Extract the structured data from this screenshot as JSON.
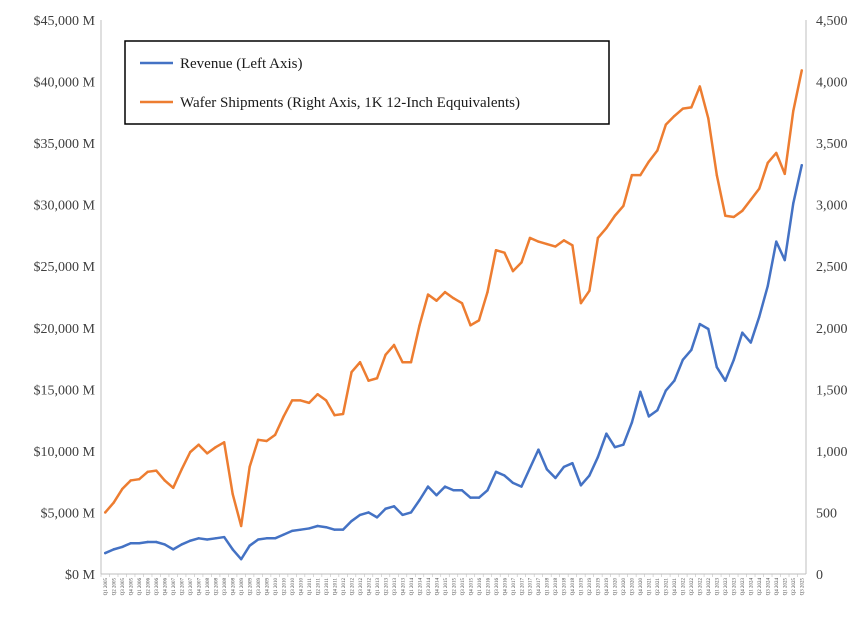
{
  "chart_data": {
    "type": "line",
    "title": "",
    "xlabel": "",
    "ylabel": "",
    "grid": false,
    "legend_position": "top-left",
    "y_left": {
      "lim": [
        0,
        45000
      ],
      "ticks": [
        0,
        5000,
        10000,
        15000,
        20000,
        25000,
        30000,
        35000,
        40000,
        45000
      ],
      "tick_labels": [
        "$0 M",
        "$5,000 M",
        "$10,000 M",
        "$15,000 M",
        "$20,000 M",
        "$25,000 M",
        "$30,000 M",
        "$35,000 M",
        "$40,000 M",
        "$45,000 M"
      ]
    },
    "y_right": {
      "lim": [
        0,
        4500
      ],
      "ticks": [
        0,
        500,
        1000,
        1500,
        2000,
        2500,
        3000,
        3500,
        4000,
        4500
      ],
      "tick_labels": [
        "0",
        "500",
        "1,000",
        "1,500",
        "2,000",
        "2,500",
        "3,000",
        "3,500",
        "4,000",
        "4,500"
      ]
    },
    "categories": [
      "Q1 2005",
      "Q2 2005",
      "Q3 2005",
      "Q4 2005",
      "Q1 2006",
      "Q2 2006",
      "Q3 2006",
      "Q4 2006",
      "Q1 2007",
      "Q2 2007",
      "Q3 2007",
      "Q4 2007",
      "Q1 2008",
      "Q2 2008",
      "Q3 2008",
      "Q4 2008",
      "Q1 2009",
      "Q2 2009",
      "Q3 2009",
      "Q4 2009",
      "Q1 2010",
      "Q2 2010",
      "Q3 2010",
      "Q4 2010",
      "Q1 2011",
      "Q2 2011",
      "Q3 2011",
      "Q4 2011",
      "Q1 2012",
      "Q2 2012",
      "Q3 2012",
      "Q4 2012",
      "Q1 2013",
      "Q2 2013",
      "Q3 2013",
      "Q4 2013",
      "Q1 2014",
      "Q2 2014",
      "Q3 2014",
      "Q4 2014",
      "Q1 2015",
      "Q2 2015",
      "Q3 2015",
      "Q4 2015",
      "Q1 2016",
      "Q2 2016",
      "Q3 2016",
      "Q4 2016",
      "Q1 2017",
      "Q2 2017",
      "Q3 2017",
      "Q4 2017",
      "Q1 2018",
      "Q2 2018",
      "Q3 2018",
      "Q4 2018",
      "Q1 2019",
      "Q2 2019",
      "Q3 2019",
      "Q4 2019",
      "Q1 2020",
      "Q2 2020",
      "Q3 2020",
      "Q4 2020",
      "Q1 2021",
      "Q2 2021",
      "Q3 2021",
      "Q4 2021",
      "Q1 2022",
      "Q2 2022",
      "Q3 2022",
      "Q4 2022",
      "Q1 2023",
      "Q2 2023",
      "Q3 2023",
      "Q4 2023",
      "Q1 2024",
      "Q2 2024",
      "Q3 2024",
      "Q4 2024",
      "Q1 2025",
      "Q2 2025",
      "Q3 2025"
    ],
    "series": [
      {
        "name": "Revenue (Left Axis)",
        "axis": "left",
        "color": "#4472C4",
        "values": [
          1700,
          2000,
          2200,
          2500,
          2500,
          2600,
          2600,
          2400,
          2000,
          2400,
          2700,
          2900,
          2800,
          2900,
          3000,
          2000,
          1200,
          2300,
          2800,
          2900,
          2900,
          3200,
          3500,
          3600,
          3700,
          3900,
          3800,
          3600,
          3600,
          4300,
          4800,
          5000,
          4600,
          5300,
          5500,
          4800,
          5000,
          6000,
          7100,
          6400,
          7100,
          6800,
          6800,
          6200,
          6200,
          6800,
          8300,
          8000,
          7400,
          7100,
          8600,
          10100,
          8500,
          7800,
          8700,
          9000,
          7200,
          8000,
          9500,
          11400,
          10300,
          10500,
          12300,
          14800,
          12800,
          13300,
          14900,
          15700,
          17400,
          18200,
          20300,
          19900,
          16800,
          15700,
          17400,
          19600,
          18800,
          20900,
          23400,
          27000,
          25500,
          30100,
          33200
        ]
      },
      {
        "name": "Wafer Shipments (Right Axis, 1K 12-Inch Eqquivalents)",
        "axis": "right",
        "color": "#ED7D31",
        "values": [
          500,
          580,
          690,
          760,
          770,
          830,
          840,
          760,
          700,
          850,
          990,
          1050,
          980,
          1030,
          1070,
          650,
          390,
          870,
          1090,
          1080,
          1130,
          1280,
          1410,
          1410,
          1390,
          1460,
          1410,
          1290,
          1300,
          1640,
          1720,
          1570,
          1590,
          1780,
          1860,
          1720,
          1720,
          2020,
          2270,
          2220,
          2290,
          2240,
          2200,
          2020,
          2060,
          2290,
          2630,
          2610,
          2460,
          2530,
          2730,
          2700,
          2680,
          2660,
          2710,
          2670,
          2200,
          2300,
          2730,
          2810,
          2910,
          2990,
          3240,
          3240,
          3350,
          3440,
          3650,
          3720,
          3780,
          3790,
          3960,
          3700,
          3240,
          2910,
          2900,
          2950,
          3040,
          3130,
          3340,
          3420,
          3250,
          3760,
          4090
        ]
      }
    ]
  }
}
